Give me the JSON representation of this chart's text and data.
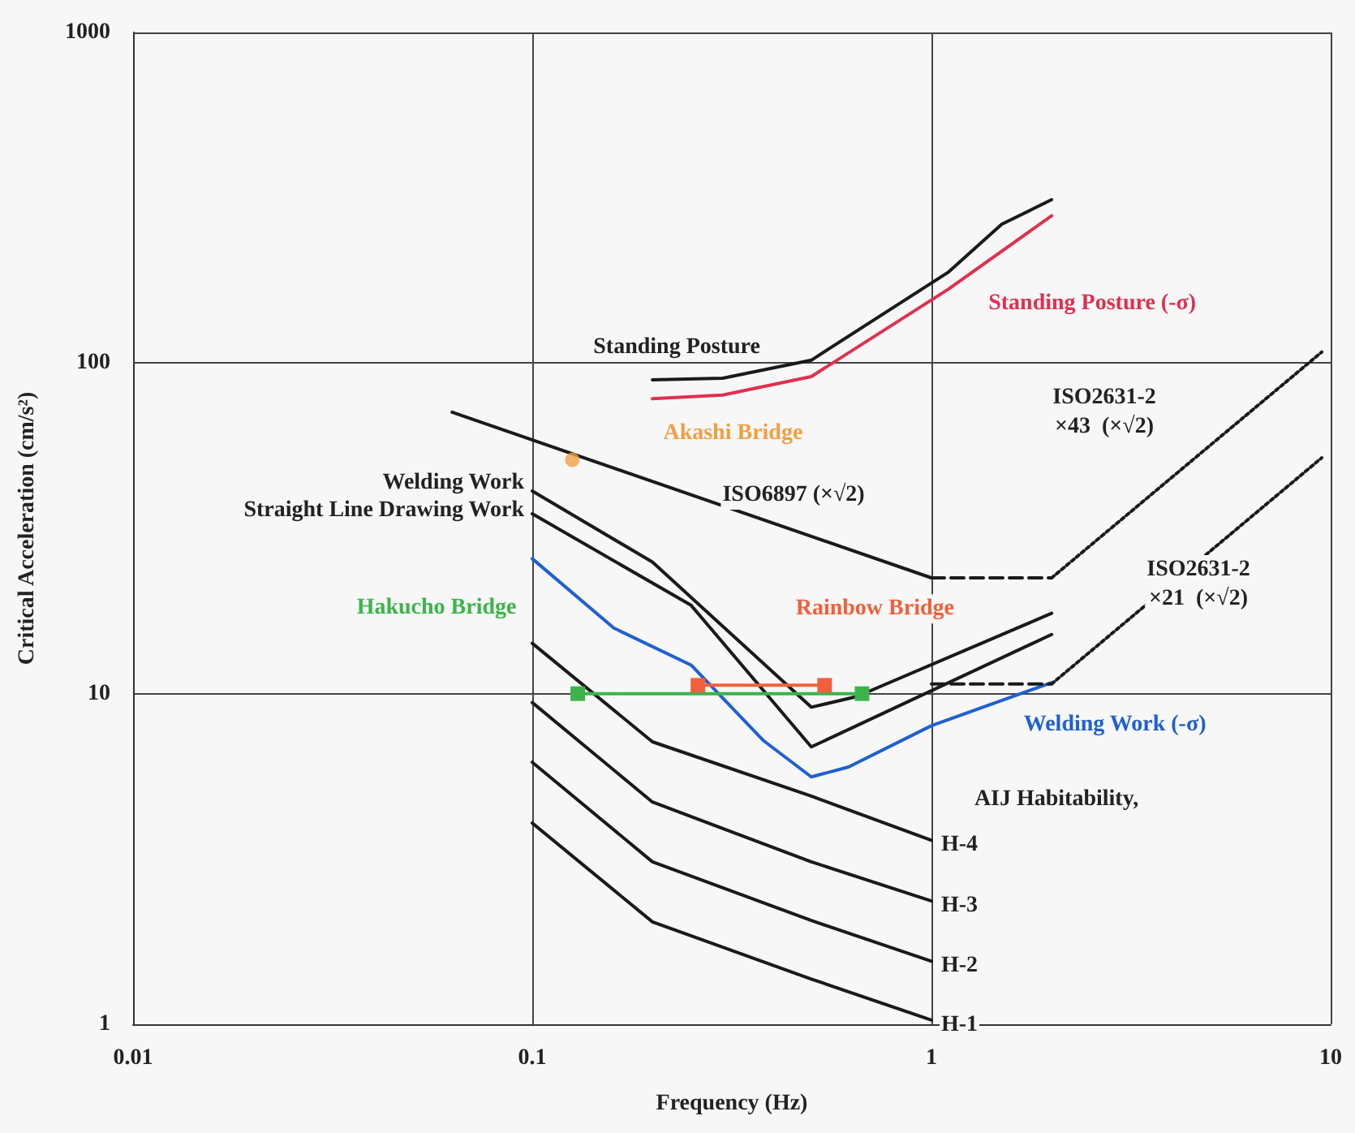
{
  "chart_data": {
    "type": "line",
    "xlabel": "Frequency (Hz)",
    "ylabel": "Critical Acceleration (cm/s²)",
    "log": "xy",
    "grid": true,
    "marker": "none",
    "line_style": "solid",
    "xlim": [
      0.01,
      10
    ],
    "xticks": [
      0.01,
      0.1,
      1,
      10
    ],
    "ylim": [
      1,
      1000
    ],
    "yticks": [
      1,
      10,
      100,
      1000
    ],
    "series": [
      {
        "name": "Standing Posture",
        "color": "#1a1a1a",
        "x": [
          0.2,
          0.3,
          0.5,
          1.1,
          1.5,
          2
        ],
        "values": [
          89,
          90,
          102,
          188,
          263,
          312
        ]
      },
      {
        "name": "Standing Posture (-σ)",
        "color": "#e03050",
        "x": [
          0.2,
          0.3,
          0.5,
          1.1,
          2
        ],
        "values": [
          78,
          80,
          91,
          167,
          279
        ]
      },
      {
        "name": "Welding Work",
        "color": "#1a1a1a",
        "x": [
          0.1,
          0.2,
          0.5,
          0.65,
          2
        ],
        "values": [
          41,
          25,
          9.1,
          9.8,
          17.5
        ]
      },
      {
        "name": "Straight Line Drawing Work",
        "color": "#1a1a1a",
        "x": [
          0.1,
          0.25,
          0.5,
          2
        ],
        "values": [
          35,
          18.5,
          6.9,
          15.1
        ]
      },
      {
        "name": "Welding Work (-σ)",
        "color": "#2060d0",
        "x": [
          0.1,
          0.16,
          0.25,
          0.38,
          0.5,
          0.62,
          1,
          2
        ],
        "values": [
          25.6,
          15.8,
          12.2,
          7.2,
          5.6,
          6,
          8,
          10.8
        ]
      },
      {
        "name": "ISO6897 (×√2)",
        "color": "#1a1a1a",
        "x": [
          0.063,
          1
        ],
        "values": [
          71,
          22.4
        ]
      },
      {
        "color": "#1a1a1a",
        "line_style": "dashed",
        "x": [
          1,
          2
        ],
        "values": [
          22.4,
          22.4
        ]
      },
      {
        "name": "ISO2631-2\n×43  (×√2)",
        "color": "#1a1a1a",
        "line_style": "dotted",
        "x": [
          2,
          9.5
        ],
        "values": [
          22.4,
          108
        ]
      },
      {
        "color": "#1a1a1a",
        "line_style": "dashed",
        "x": [
          1,
          2
        ],
        "values": [
          10.7,
          10.7
        ]
      },
      {
        "name": "ISO2631-2\n×21  (×√2)",
        "color": "#1a1a1a",
        "line_style": "dotted",
        "x": [
          2,
          9.5
        ],
        "values": [
          10.7,
          51.7
        ]
      },
      {
        "name": "H-4",
        "color": "#1a1a1a",
        "x": [
          0.1,
          0.2,
          0.5,
          1
        ],
        "values": [
          14.2,
          7.15,
          4.9,
          3.6
        ]
      },
      {
        "name": "H-3",
        "color": "#1a1a1a",
        "x": [
          0.1,
          0.2,
          0.5,
          1
        ],
        "values": [
          9.4,
          4.7,
          3.1,
          2.36
        ]
      },
      {
        "name": "H-2",
        "color": "#1a1a1a",
        "x": [
          0.1,
          0.2,
          0.5,
          1
        ],
        "values": [
          6.2,
          3.1,
          2.06,
          1.55
        ]
      },
      {
        "name": "H-1",
        "color": "#1a1a1a",
        "x": [
          0.1,
          0.2,
          0.5,
          1
        ],
        "values": [
          4.06,
          2.04,
          1.37,
          1.03
        ]
      },
      {
        "name": "Hakucho Bridge",
        "color": "#3cb44b",
        "marker": "square",
        "x": [
          0.13,
          0.67
        ],
        "values": [
          10,
          10
        ]
      },
      {
        "name": "Rainbow Bridge",
        "color": "#f0603c",
        "marker": "square",
        "x": [
          0.26,
          0.54
        ],
        "values": [
          10.6,
          10.6
        ]
      },
      {
        "name": "Akashi Bridge",
        "type": "scatter",
        "color": "#f0a040",
        "marker": "circle",
        "x": [
          0.126
        ],
        "values": [
          51
        ]
      }
    ],
    "annotations": [
      "AIJ Habitability,"
    ]
  }
}
